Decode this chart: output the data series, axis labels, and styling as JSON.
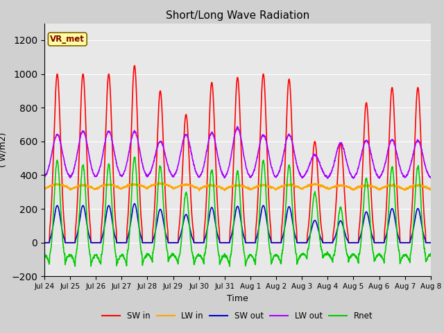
{
  "title": "Short/Long Wave Radiation",
  "xlabel": "Time",
  "ylabel": "( W/m2)",
  "ylim": [
    -200,
    1300
  ],
  "yticks": [
    -200,
    0,
    200,
    400,
    600,
    800,
    1000,
    1200
  ],
  "n_days": 15,
  "annotation_text": "VR_met",
  "fig_bg_color": "#d0d0d0",
  "plot_bg": "#e8e8e8",
  "legend_items": [
    {
      "label": "SW in",
      "color": "#ff0000",
      "lw": 1.2
    },
    {
      "label": "LW in",
      "color": "#ffa500",
      "lw": 1.2
    },
    {
      "label": "SW out",
      "color": "#0000cc",
      "lw": 1.2
    },
    {
      "label": "LW out",
      "color": "#aa00ff",
      "lw": 1.2
    },
    {
      "label": "Rnet",
      "color": "#00cc00",
      "lw": 1.2
    }
  ],
  "tick_labels": [
    "Jul 24",
    "Jul 25",
    "Jul 26",
    "Jul 27",
    "Jul 28",
    "Jul 29",
    "Jul 30",
    "Jul 31",
    "Aug 1",
    "Aug 2",
    "Aug 3",
    "Aug 4",
    "Aug 5",
    "Aug 6",
    "Aug 7",
    "Aug 8"
  ],
  "sw_peaks": [
    1000,
    1000,
    1000,
    1050,
    900,
    760,
    950,
    980,
    1000,
    970,
    600,
    590,
    830,
    920,
    920
  ],
  "lw_out_peaks": [
    640,
    660,
    660,
    660,
    600,
    640,
    650,
    680,
    640,
    640,
    520,
    590,
    605,
    610,
    605
  ],
  "lw_in_base": [
    320,
    315,
    318,
    320,
    325,
    318,
    315,
    315,
    315,
    318,
    320,
    315,
    315,
    315,
    315
  ],
  "lw_out_night": [
    380,
    375,
    380,
    380,
    385,
    380,
    375,
    375,
    375,
    380,
    380,
    375,
    375,
    375,
    375
  ]
}
